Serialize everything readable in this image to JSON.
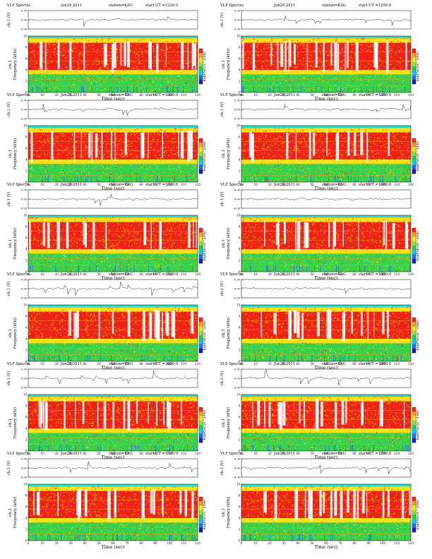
{
  "figure": {
    "panels": [
      {
        "title": "VLF Spectra",
        "date": "Jun20,2011",
        "station": "station=KAG",
        "start": "start  UT  =1220:0"
      },
      {
        "title": "VLF Spectra",
        "date": "Jun20,2011",
        "station": "station=KAG",
        "start": "start  UT  =1250:0"
      },
      {
        "title": "VLF Spectra",
        "date": "Jun20,2011",
        "station": "station=KAG",
        "start": "start  UT  =1320:0"
      },
      {
        "title": "VLF Spectra",
        "date": "Jun20,2011",
        "station": "station=KAG",
        "start": "start  UT  =1350:0"
      },
      {
        "title": "VLF Spectra",
        "date": "Jun20,2011",
        "station": "station=KAG",
        "start": "start  UT  =1420:0"
      },
      {
        "title": "VLF Spectra",
        "date": "Jun20,2011",
        "station": "station=KAG",
        "start": "start  UT  =1450:0"
      },
      {
        "title": "VLF Spectra",
        "date": "Jun20,2011",
        "station": "station=KAG",
        "start": "start  UT  =1520:0"
      },
      {
        "title": "VLF Spectra",
        "date": "Jun20,2011",
        "station": "station=KAG",
        "start": "start  UT  =1550:0"
      },
      {
        "title": "VLF Spectra",
        "date": "Jun20,2011",
        "station": "station=KAG",
        "start": "start  UT  =1620:0"
      },
      {
        "title": "VLF Spectra",
        "date": "Jun20,2011",
        "station": "station=KAG",
        "start": "start  UT  =1650:0"
      },
      {
        "title": "VLF Spectra",
        "date": "Jun20,2011",
        "station": "station=KAG",
        "start": "start  UT  =1720:0"
      },
      {
        "title": "VLF Spectra",
        "date": "Jun20,2011",
        "station": "station=KAG",
        "start": "start  UT  =1750:0"
      }
    ]
  },
  "chart_data": {
    "type": "heatmap",
    "panel_count": 12,
    "layout": "6 rows x 2 columns",
    "waveform_axis": {
      "label": "ch.1 (V)",
      "ticks": [
        0.3,
        0.0,
        -0.3
      ],
      "tick_labels": [
        "0.30",
        "0.00",
        "-0.30"
      ],
      "ylim": [
        -0.3,
        0.3
      ]
    },
    "spectrogram_axis": {
      "label_line1": "ch.1",
      "label_line2": "Frequency  (kHz)",
      "ticks": [
        0,
        2,
        4,
        6,
        8,
        10
      ],
      "ylim": [
        0,
        10
      ]
    },
    "time_axis": {
      "label": "Time  (sec)",
      "ticks": [
        0,
        10,
        20,
        30,
        40,
        50,
        60,
        70,
        80,
        90,
        100,
        110,
        120
      ],
      "xlim": [
        0,
        120
      ]
    },
    "colorbar": {
      "label": "log(PSD)(V^2/Hz)",
      "colors": [
        "#1c1cb4",
        "#1e6cf0",
        "#18c8ec",
        "#22d24e",
        "#9ee02c",
        "#f4ec1c",
        "#f7a21c",
        "#f02a1a"
      ],
      "high_color": "#f02a1a",
      "low_color": "#1c1cb4"
    },
    "spectrogram_colors": {
      "background_band": "#2fd8c8",
      "upper_band": "#f4e21a",
      "main": "#ec2418",
      "low_band": "#3ad04a",
      "lines": "#f7a41c",
      "gaps": "#ffffff"
    }
  }
}
